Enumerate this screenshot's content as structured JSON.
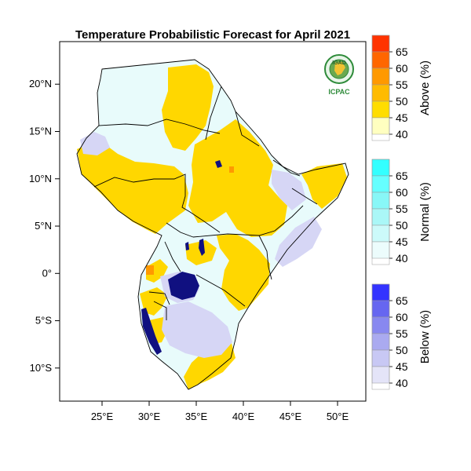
{
  "title": "Temperature Probabilistic Forecast for April 2021",
  "map": {
    "lon_range": [
      20.5,
      53.0
    ],
    "lat_range": [
      -13.5,
      24.5
    ],
    "x_ticks": [
      {
        "value": 25,
        "label": "25°E"
      },
      {
        "value": 30,
        "label": "30°E"
      },
      {
        "value": 35,
        "label": "35°E"
      },
      {
        "value": 40,
        "label": "40°E"
      },
      {
        "value": 45,
        "label": "45°E"
      },
      {
        "value": 50,
        "label": "50°E"
      }
    ],
    "y_ticks": [
      {
        "value": 20,
        "label": "20°N"
      },
      {
        "value": 15,
        "label": "15°N"
      },
      {
        "value": 10,
        "label": "10°N"
      },
      {
        "value": 5,
        "label": "5°N"
      },
      {
        "value": 0,
        "label": "0°"
      },
      {
        "value": -5,
        "label": "5°S"
      },
      {
        "value": -10,
        "label": "10°S"
      }
    ],
    "category_colors": {
      "above": "#ffd700",
      "above_light": "#fff3a0",
      "above_strong": "#ff8c00",
      "normal": "#e8fbfb",
      "below": "#d6d6f5",
      "below_strong": "#b8b8ec",
      "lake": "#101080"
    }
  },
  "logo": {
    "top_text": "IGAD",
    "bottom_text": "ICPAC"
  },
  "legend": [
    {
      "title": "Above (%)",
      "labels": [
        "65",
        "60",
        "55",
        "50",
        "45",
        "40"
      ],
      "colors": [
        "#ff3300",
        "#ff6600",
        "#ff9900",
        "#ffbb00",
        "#ffdd00",
        "#ffffc0"
      ]
    },
    {
      "title": "Normal (%)",
      "labels": [
        "65",
        "60",
        "55",
        "50",
        "45",
        "40"
      ],
      "colors": [
        "#33ffff",
        "#66ffff",
        "#88f7f7",
        "#aaf7f7",
        "#ccfafa",
        "#ecfcfc"
      ]
    },
    {
      "title": "Below (%)",
      "labels": [
        "65",
        "60",
        "55",
        "50",
        "45",
        "40"
      ],
      "colors": [
        "#3333ff",
        "#6666f0",
        "#8888f0",
        "#aaaaf0",
        "#c8c8f4",
        "#e4e4f8"
      ]
    }
  ]
}
